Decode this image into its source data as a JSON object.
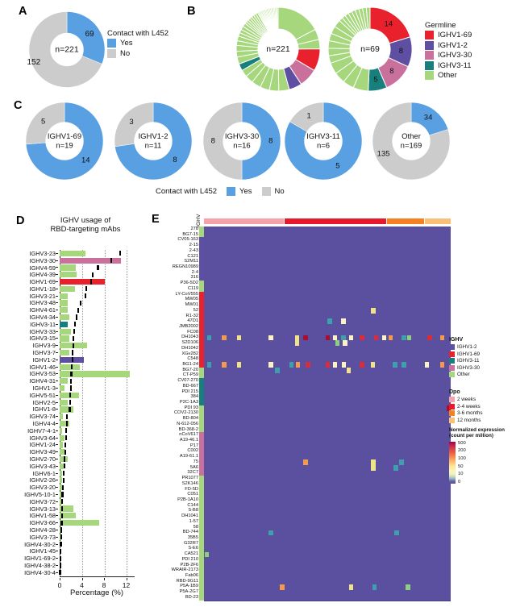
{
  "panel_labels": {
    "a": "A",
    "b": "B",
    "c": "C",
    "d": "D",
    "e": "E"
  },
  "colors": {
    "blue": "#58a0e2",
    "gray": "#cccccc",
    "red": "#e8212c",
    "purple": "#5e4fa2",
    "pink": "#c9719c",
    "teal": "#17807d",
    "green": "#a6d77c",
    "heat_bg": "#5a509f",
    "axis": "#222222",
    "heat": {
      "t": "#3f9fad",
      "g": "#8ecf7f",
      "c": "#fdf2c3",
      "y": "#f0e28a",
      "o": "#f49a4e",
      "r": "#d62e3c",
      "d": "#a50f33"
    },
    "dpo": {
      "w2": "#f4a3ab",
      "w24": "#e8192d",
      "m36": "#f58121",
      "m12": "#fbc077"
    }
  },
  "legends": {
    "contact_a": {
      "title": "Contact with L452",
      "items": [
        {
          "label": "Yes",
          "color": "blue"
        },
        {
          "label": "No",
          "color": "gray"
        }
      ]
    },
    "germline": {
      "title": "Germline",
      "items": [
        {
          "label": "IGHV1-69",
          "color": "red"
        },
        {
          "label": "IGHV1-2",
          "color": "purple"
        },
        {
          "label": "IGHV3-30",
          "color": "pink"
        },
        {
          "label": "IGHV3-11",
          "color": "teal"
        },
        {
          "label": "Other",
          "color": "green"
        }
      ]
    },
    "contact_c": {
      "title": "Contact with L452",
      "items": [
        {
          "label": "Yes",
          "color": "blue"
        },
        {
          "label": "No",
          "color": "gray"
        }
      ]
    },
    "ighv": {
      "title": "IGHV",
      "items": [
        {
          "label": "IGHV1-2",
          "color": "purple"
        },
        {
          "label": "IGHV1-69",
          "color": "red"
        },
        {
          "label": "IGHV3-11",
          "color": "teal"
        },
        {
          "label": "IGHV3-30",
          "color": "pink"
        },
        {
          "label": "Other",
          "color": "green"
        }
      ]
    },
    "dpo": {
      "title": "Dpo",
      "items": [
        {
          "label": "2 weeks",
          "color": "w2"
        },
        {
          "label": "2-4 weeks",
          "color": "w24"
        },
        {
          "label": "3-6 months",
          "color": "m36"
        },
        {
          "label": "12 months",
          "color": "m12"
        }
      ]
    },
    "expr": {
      "title_line1": "Normalized expression",
      "title_line2": "(count per million)",
      "ticks": [
        "500",
        "200",
        "100",
        "50",
        "10",
        "0"
      ]
    }
  },
  "chart_data": [
    {
      "id": "A",
      "type": "pie",
      "center": "n=221",
      "slices": [
        [
          69,
          "blue",
          "69"
        ],
        [
          152,
          "gray",
          "152",
          249,
          44
        ]
      ]
    },
    {
      "id": "B1",
      "type": "pie",
      "center": "n=221",
      "slices": [
        [
          38,
          "green"
        ],
        [
          9,
          "green"
        ],
        [
          8,
          "green"
        ],
        [
          19,
          "red"
        ],
        [
          16,
          "pink"
        ],
        [
          11,
          "purple"
        ],
        [
          9,
          "green"
        ],
        [
          8,
          "green"
        ],
        [
          8,
          "green"
        ],
        [
          8,
          "green"
        ],
        [
          7,
          "green"
        ],
        [
          6,
          "green"
        ],
        [
          6,
          "teal"
        ],
        [
          6,
          "green"
        ],
        [
          5,
          "green"
        ],
        [
          5,
          "green"
        ],
        [
          4,
          "green"
        ],
        [
          4,
          "green"
        ],
        [
          3,
          "green"
        ],
        [
          3,
          "green"
        ],
        [
          3,
          "green"
        ],
        [
          3,
          "green"
        ],
        [
          2,
          "green"
        ],
        [
          2,
          "green"
        ],
        [
          2,
          "green"
        ],
        [
          2,
          "green"
        ],
        [
          2,
          "green"
        ],
        [
          2,
          "green"
        ],
        [
          2,
          "green"
        ],
        [
          1,
          "green"
        ],
        [
          1,
          "green"
        ],
        [
          1,
          "green"
        ],
        [
          1,
          "green"
        ],
        [
          1,
          "green"
        ],
        [
          1,
          "green"
        ],
        [
          1,
          "green"
        ],
        [
          1,
          "green"
        ],
        [
          1,
          "green"
        ],
        [
          1,
          "green"
        ],
        [
          1,
          "green"
        ],
        [
          1,
          "green"
        ],
        [
          1,
          "green"
        ],
        [
          1,
          "green"
        ],
        [
          1,
          "green"
        ],
        [
          1,
          "green"
        ],
        [
          1,
          "green"
        ],
        [
          1,
          "green"
        ]
      ]
    },
    {
      "id": "B2",
      "type": "pie",
      "center": "n=69",
      "slices": [
        [
          14,
          "red",
          "14"
        ],
        [
          8,
          "purple",
          "8"
        ],
        [
          8,
          "pink",
          "8"
        ],
        [
          5,
          "teal",
          "5"
        ],
        [
          4,
          "green"
        ],
        [
          3,
          "green"
        ],
        [
          3,
          "green"
        ],
        [
          3,
          "green"
        ],
        [
          2,
          "green"
        ],
        [
          2,
          "green"
        ],
        [
          2,
          "green"
        ],
        [
          2,
          "green"
        ],
        [
          2,
          "green"
        ],
        [
          2,
          "green"
        ],
        [
          1,
          "green"
        ],
        [
          1,
          "green"
        ],
        [
          1,
          "green"
        ],
        [
          1,
          "green"
        ],
        [
          1,
          "green"
        ],
        [
          1,
          "green"
        ],
        [
          1,
          "green"
        ],
        [
          1,
          "green"
        ],
        [
          1,
          "green"
        ]
      ]
    },
    {
      "id": "C1",
      "type": "pie",
      "center_lines": [
        "IGHV1-69",
        "n=19"
      ],
      "slices": [
        [
          14,
          "blue",
          "14"
        ],
        [
          5,
          "gray",
          "5"
        ]
      ]
    },
    {
      "id": "C2",
      "type": "pie",
      "center_lines": [
        "IGHV1-2",
        "n=11"
      ],
      "slices": [
        [
          8,
          "blue",
          "8"
        ],
        [
          3,
          "gray",
          "3"
        ]
      ]
    },
    {
      "id": "C3",
      "type": "pie",
      "center_lines": [
        "IGHV3-30",
        "n=16"
      ],
      "slices": [
        [
          8,
          "blue",
          "8"
        ],
        [
          8,
          "gray",
          "8"
        ]
      ]
    },
    {
      "id": "C4",
      "type": "pie",
      "center_lines": [
        "IGHV3-11",
        "n=6"
      ],
      "slices": [
        [
          5,
          "blue",
          "5"
        ],
        [
          1,
          "gray",
          "1"
        ]
      ]
    },
    {
      "id": "C5",
      "type": "pie",
      "center_lines": [
        "Other",
        "n=169"
      ],
      "slices": [
        [
          34,
          "blue",
          "34"
        ],
        [
          135,
          "gray",
          "135",
          245,
          38
        ]
      ]
    },
    {
      "id": "D",
      "type": "bar",
      "title": [
        "IGHV usage of",
        "RBD-targeting mAbs"
      ],
      "xlabel": "Percentage (%)",
      "xticks": [
        0,
        4,
        8,
        12
      ],
      "xlim": [
        0,
        13.4
      ],
      "gridlines": [
        4,
        8,
        12
      ],
      "rows": [
        [
          "IGHV3-23",
          4.7,
          10.9,
          "green"
        ],
        [
          "IGHV3-30",
          11.1,
          9.3,
          "pink"
        ],
        [
          "IGHV4-59",
          2.9,
          6.9,
          "green"
        ],
        [
          "IGHV4-39",
          3.1,
          5.9,
          "green"
        ],
        [
          "IGHV1-69",
          8.1,
          5.6,
          "red"
        ],
        [
          "IGHV1-18",
          2.7,
          4.8,
          "green"
        ],
        [
          "IGHV3-21",
          1.4,
          4.7,
          "green"
        ],
        [
          "IGHV3-48",
          1.5,
          3.8,
          "green"
        ],
        [
          "IGHV4-61",
          1.4,
          3.3,
          "green"
        ],
        [
          "IGHV4-34",
          1.7,
          3.0,
          "green"
        ],
        [
          "IGHV3-11",
          1.4,
          2.8,
          "teal"
        ],
        [
          "IGHV3-33",
          2.0,
          2.6,
          "green"
        ],
        [
          "IGHV3-15",
          1.7,
          2.45,
          "green"
        ],
        [
          "IGHV3-9",
          5.0,
          2.4,
          "green"
        ],
        [
          "IGHV3-7",
          1.8,
          2.35,
          "green"
        ],
        [
          "IGHV1-2",
          4.4,
          2.3,
          "purple"
        ],
        [
          "IGHV1-46",
          3.6,
          2.2,
          "green"
        ],
        [
          "IGHV3-53",
          12.7,
          2.1,
          "green"
        ],
        [
          "IGHV4-31",
          1.5,
          2.05,
          "green"
        ],
        [
          "IGHV1-3",
          0.9,
          2.0,
          "green"
        ],
        [
          "IGHV5-51",
          3.5,
          1.9,
          "green"
        ],
        [
          "IGHV2-5",
          1.4,
          1.85,
          "green"
        ],
        [
          "IGHV1-8",
          2.4,
          1.8,
          "green"
        ],
        [
          "IGHV3-74",
          0.6,
          1.3,
          "green"
        ],
        [
          "IGHV4-4",
          1.7,
          1.25,
          "green"
        ],
        [
          "IGHV7-4-1",
          0.4,
          1.15,
          "green"
        ],
        [
          "IGHV3-64",
          0.8,
          1.1,
          "green"
        ],
        [
          "IGHV1-24",
          0.6,
          1.0,
          "green"
        ],
        [
          "IGHV3-49",
          1.0,
          0.95,
          "green"
        ],
        [
          "IGHV2-70",
          1.5,
          0.9,
          "green"
        ],
        [
          "IGHV3-43",
          0.7,
          0.8,
          "green"
        ],
        [
          "IGHV6-1",
          0.5,
          0.75,
          "green"
        ],
        [
          "IGHV2-26",
          0.4,
          0.7,
          "green"
        ],
        [
          "IGHV3-20",
          0.5,
          0.6,
          "green"
        ],
        [
          "IGHV5-10-1",
          0.3,
          0.5,
          "green"
        ],
        [
          "IGHV3-72",
          0.4,
          0.45,
          "green"
        ],
        [
          "IGHV3-13",
          2.4,
          0.4,
          "green"
        ],
        [
          "IGHV1-58",
          2.9,
          0.4,
          "green"
        ],
        [
          "IGHV3-66",
          7.1,
          0.35,
          "green"
        ],
        [
          "IGHV4-28",
          0.3,
          0.3,
          "green"
        ],
        [
          "IGHV3-73",
          0.3,
          0.25,
          "green"
        ],
        [
          "IGHV4-30-2",
          0.2,
          0.2,
          "green"
        ],
        [
          "IGHV1-45",
          0.15,
          0.15,
          "green"
        ],
        [
          "IGHV1-69-2",
          0.1,
          0.1,
          "green"
        ],
        [
          "IGHV4-38-2",
          0.2,
          0.1,
          "green"
        ],
        [
          "IGHV4-30-4",
          0.1,
          0.05,
          "green"
        ]
      ]
    },
    {
      "id": "E",
      "type": "heatmap",
      "col_header": "IGHV",
      "rows": [
        "278",
        "BG7-15",
        "CV05-163",
        "2-15",
        "2-43",
        "C121",
        "S2M11",
        "REGN10989",
        "2-4",
        "316",
        "P36-5D2",
        "C119",
        "LY-CoV555",
        "MW05",
        "MW01",
        "52",
        "R1-32",
        "47D1",
        "JMB2002",
        "FC08",
        "DH1043",
        "S2D106",
        "DH1042",
        "XGv282",
        "C548",
        "BG1-24",
        "BG7-20",
        "CT-P59",
        "CV07-270",
        "BD-667",
        "PDI 215",
        "384",
        "P2C-1A3",
        "PDI 93",
        "COV2-2130",
        "BD-804",
        "N-612-056",
        "BD-368-2",
        "nCoV617",
        "A19-46.1",
        "P17",
        "C002",
        "A19-61.1",
        "75",
        "5A6",
        "32C7",
        "PR1077",
        "S2K146",
        "FD-5D",
        "C051",
        "P2B-1A10",
        "C144",
        "S-B8",
        "DH1041",
        "1-57",
        "58",
        "BD-744",
        "35B5",
        "G32R7",
        "S-E6",
        "CA521",
        "PDI 210",
        "P2B-2F6",
        "WRAIR-2173",
        "Fab06",
        "RBD-9G11",
        "P5A-1B9",
        "P5A-2G7",
        "BD-23"
      ],
      "row_groups": [
        [
          0,
          1,
          "green"
        ],
        [
          2,
          9,
          "purple"
        ],
        [
          10,
          11,
          "green"
        ],
        [
          12,
          25,
          "red"
        ],
        [
          26,
          27,
          "green"
        ],
        [
          28,
          32,
          "teal"
        ],
        [
          33,
          37,
          "green"
        ],
        [
          38,
          45,
          "pink"
        ],
        [
          46,
          68,
          "green"
        ]
      ],
      "dpo_segments": [
        {
          "frac": 0.327,
          "color": "w2"
        },
        {
          "frac": 0.415,
          "color": "w24"
        },
        {
          "frac": 0.153,
          "color": "m36"
        },
        {
          "frac": 0.105,
          "color": "m12"
        }
      ],
      "cells": [
        [
          15,
          0.677,
          "y"
        ],
        [
          17,
          0.5,
          "t"
        ],
        [
          17,
          0.556,
          "c"
        ],
        [
          20,
          0.012,
          "t"
        ],
        [
          20,
          0.073,
          "o"
        ],
        [
          20,
          0.133,
          "y"
        ],
        [
          20,
          0.262,
          "c"
        ],
        [
          20,
          0.368,
          "y"
        ],
        [
          20,
          0.402,
          "d"
        ],
        [
          20,
          0.492,
          "d"
        ],
        [
          20,
          0.522,
          "c"
        ],
        [
          20,
          0.556,
          "t"
        ],
        [
          20,
          0.588,
          "c"
        ],
        [
          20,
          0.632,
          "r"
        ],
        [
          20,
          0.688,
          "r"
        ],
        [
          20,
          0.722,
          "c"
        ],
        [
          20,
          0.748,
          "o"
        ],
        [
          20,
          0.802,
          "t"
        ],
        [
          20,
          0.822,
          "g"
        ],
        [
          20,
          0.906,
          "r"
        ],
        [
          20,
          0.956,
          "o"
        ],
        [
          21,
          0.368,
          "y"
        ],
        [
          21,
          0.532,
          "g"
        ],
        [
          21,
          0.562,
          "c"
        ],
        [
          25,
          0.012,
          "t"
        ],
        [
          25,
          0.073,
          "o"
        ],
        [
          25,
          0.133,
          "y"
        ],
        [
          25,
          0.262,
          "c"
        ],
        [
          25,
          0.345,
          "t"
        ],
        [
          25,
          0.372,
          "o"
        ],
        [
          25,
          0.412,
          "r"
        ],
        [
          25,
          0.492,
          "r"
        ],
        [
          25,
          0.522,
          "c"
        ],
        [
          25,
          0.558,
          "c"
        ],
        [
          25,
          0.632,
          "r"
        ],
        [
          25,
          0.675,
          "y"
        ],
        [
          25,
          0.765,
          "t"
        ],
        [
          25,
          0.802,
          "t"
        ],
        [
          25,
          0.895,
          "c"
        ],
        [
          25,
          0.956,
          "o"
        ],
        [
          26,
          0.288,
          "t"
        ],
        [
          26,
          0.578,
          "y"
        ],
        [
          33,
          0.985,
          "d"
        ],
        [
          43,
          0.402,
          "o"
        ],
        [
          43,
          0.677,
          "y"
        ],
        [
          43,
          0.792,
          "t"
        ],
        [
          44,
          0.677,
          "y"
        ],
        [
          44,
          0.768,
          "t"
        ],
        [
          56,
          0.262,
          "t"
        ],
        [
          56,
          0.772,
          "t"
        ],
        [
          60,
          0.002,
          "g"
        ],
        [
          66,
          0.308,
          "o"
        ],
        [
          66,
          0.588,
          "y"
        ],
        [
          66,
          0.682,
          "t"
        ],
        [
          66,
          0.818,
          "g"
        ]
      ]
    }
  ]
}
